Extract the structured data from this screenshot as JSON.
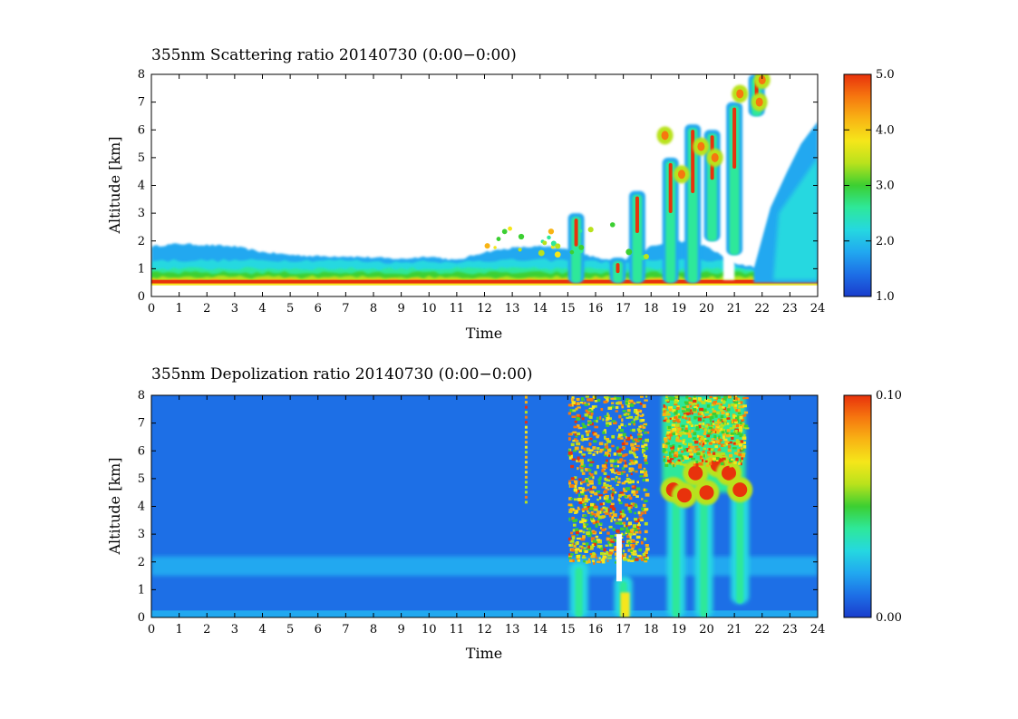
{
  "chart_data": [
    {
      "type": "heatmap",
      "title": "355nm Scattering ratio  20140730 (0:00−0:00)",
      "xlabel": "Time",
      "ylabel": "Altitude [km]",
      "xlim": [
        0,
        24
      ],
      "ylim": [
        0,
        8
      ],
      "x_ticks": [
        "0",
        "1",
        "2",
        "3",
        "4",
        "5",
        "6",
        "7",
        "8",
        "9",
        "10",
        "11",
        "12",
        "13",
        "14",
        "15",
        "16",
        "17",
        "18",
        "19",
        "20",
        "21",
        "22",
        "23",
        "24"
      ],
      "y_ticks": [
        "0",
        "1",
        "2",
        "3",
        "4",
        "5",
        "6",
        "7",
        "8"
      ],
      "colorbar": {
        "range": [
          1.0,
          5.0
        ],
        "ticks": [
          "1.0",
          "2.0",
          "3.0",
          "4.0",
          "5.0"
        ],
        "colormap": [
          "#1a3dcc",
          "#1d6fe6",
          "#21a8f0",
          "#25d8e0",
          "#2ee89a",
          "#3ccf32",
          "#b9e21c",
          "#f5e61a",
          "#f8b414",
          "#f6770f",
          "#e8320c"
        ]
      },
      "features": {
        "boundary_layer_top_km": [
          1.8,
          1.9,
          1.85,
          1.8,
          1.6,
          1.5,
          1.45,
          1.45,
          1.4,
          1.35,
          1.45,
          1.3,
          1.6,
          1.75,
          1.8,
          1.7,
          1.4,
          1.3,
          1.8,
          2.0,
          1.8,
          1.2,
          1.0,
          1.0,
          1.0
        ],
        "surface_layer_km": 0.5,
        "clouds": [
          {
            "time": 15.3,
            "base_km": 0.5,
            "top_km": 3.0
          },
          {
            "time": 16.8,
            "base_km": 0.5,
            "top_km": 1.4
          },
          {
            "time": 17.5,
            "base_km": 0.5,
            "top_km": 3.8
          },
          {
            "time": 18.7,
            "base_km": 0.5,
            "top_km": 5.0
          },
          {
            "time": 19.5,
            "base_km": 0.5,
            "top_km": 6.2
          },
          {
            "time": 20.2,
            "base_km": 2.0,
            "top_km": 6.0
          },
          {
            "time": 21.0,
            "base_km": 1.5,
            "top_km": 7.0
          },
          {
            "time": 21.8,
            "base_km": 6.5,
            "top_km": 8.0
          }
        ],
        "upper_aerosol_region": {
          "time_start": 21.7,
          "time_end": 24.0,
          "top_km_end": 6.3
        }
      }
    },
    {
      "type": "heatmap",
      "title": "355nm Depolization ratio  20140730 (0:00−0:00)",
      "xlabel": "Time",
      "ylabel": "Altitude [km]",
      "xlim": [
        0,
        24
      ],
      "ylim": [
        0,
        8
      ],
      "x_ticks": [
        "0",
        "1",
        "2",
        "3",
        "4",
        "5",
        "6",
        "7",
        "8",
        "9",
        "10",
        "11",
        "12",
        "13",
        "14",
        "15",
        "16",
        "17",
        "18",
        "19",
        "20",
        "21",
        "22",
        "23",
        "24"
      ],
      "y_ticks": [
        "0",
        "1",
        "2",
        "3",
        "4",
        "5",
        "6",
        "7",
        "8"
      ],
      "colorbar": {
        "range": [
          0.0,
          0.1
        ],
        "ticks": [
          "0.00",
          "0.10"
        ],
        "colormap": [
          "#1a3dcc",
          "#1d6fe6",
          "#21a8f0",
          "#25d8e0",
          "#2ee89a",
          "#3ccf32",
          "#b9e21c",
          "#f5e61a",
          "#f8b414",
          "#f6770f",
          "#e8320c"
        ]
      },
      "features": {
        "noisy_high_depol_region": {
          "time_start": 15.0,
          "time_end": 17.8,
          "base_km": 2.0,
          "top_km": 8.0
        },
        "ice_cloud_regions": [
          {
            "time_start": 18.4,
            "time_end": 21.4,
            "base_km": 4.5,
            "top_km": 8.0
          }
        ],
        "fall_streaks": [
          {
            "time": 15.4,
            "base_km": 0.0,
            "top_km": 2.0
          },
          {
            "time": 17.0,
            "base_km": 0.0,
            "top_km": 1.5
          },
          {
            "time": 18.9,
            "base_km": 0.0,
            "top_km": 4.5
          },
          {
            "time": 19.9,
            "base_km": 0.0,
            "top_km": 4.5
          },
          {
            "time": 21.2,
            "base_km": 0.5,
            "top_km": 4.5
          }
        ],
        "isolated_column": {
          "time": 13.5,
          "base_km": 4.2,
          "top_km": 8.0
        }
      }
    }
  ]
}
